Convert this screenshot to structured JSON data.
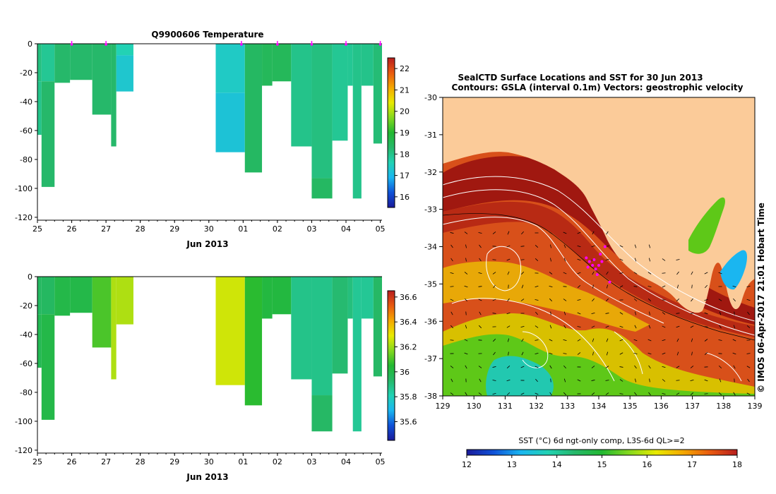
{
  "colors": {
    "land": "#fbcb99",
    "contour": "#ffffff",
    "marker": "#ff00ff",
    "frame": "#000000"
  },
  "chart_data": [
    {
      "id": "temperature-profile",
      "type": "heatmap",
      "title": "Q9900606  Temperature",
      "xlabel": "Jun 2013",
      "x_ticks": [
        "25",
        "26",
        "27",
        "28",
        "29",
        "30",
        "01",
        "02",
        "03",
        "04",
        "05"
      ],
      "x_range": [
        25,
        35.05
      ],
      "y_ticks": [
        "0",
        "-20",
        "-40",
        "-60",
        "-80",
        "-100",
        "-120"
      ],
      "ylim": [
        -122,
        0
      ],
      "colorbar": {
        "ticks": [
          "16",
          "17",
          "18",
          "19",
          "20",
          "21",
          "22"
        ],
        "range": [
          15.5,
          22.5
        ],
        "stops": [
          "#1a1a9a",
          "#0f52d8",
          "#1ab6f0",
          "#22d2b4",
          "#26b86a",
          "#22b832",
          "#84d81e",
          "#e8ea00",
          "#f4a800",
          "#e85a10",
          "#b81e1e"
        ]
      },
      "surface_markers_day": [
        26.0,
        27.0,
        30.95,
        32.0,
        33.0,
        34.0,
        35.0
      ],
      "profiles": [
        {
          "x0": 25.0,
          "x1": 25.12,
          "depth": 63,
          "segments": [
            [
              0,
              26,
              18.1
            ],
            [
              26,
              63,
              18.0
            ]
          ]
        },
        {
          "x0": 25.12,
          "x1": 25.5,
          "depth": 99,
          "segments": [
            [
              0,
              26,
              17.9
            ],
            [
              26,
              99,
              18.3
            ]
          ]
        },
        {
          "x0": 25.5,
          "x1": 25.95,
          "depth": 27,
          "segments": [
            [
              0,
              27,
              18.3
            ]
          ]
        },
        {
          "x0": 25.95,
          "x1": 26.6,
          "depth": 25,
          "segments": [
            [
              0,
              25,
              18.3
            ]
          ]
        },
        {
          "x0": 26.6,
          "x1": 27.15,
          "depth": 49,
          "segments": [
            [
              0,
              49,
              18.3
            ]
          ]
        },
        {
          "x0": 27.15,
          "x1": 27.3,
          "depth": 71,
          "segments": [
            [
              0,
              71,
              18.3
            ]
          ]
        },
        {
          "x0": 27.3,
          "x1": 27.8,
          "depth": 33,
          "segments": [
            [
              0,
              8,
              17.6
            ],
            [
              8,
              33,
              17.3
            ]
          ]
        },
        {
          "x0": 30.2,
          "x1": 31.05,
          "depth": 75,
          "segments": [
            [
              0,
              34,
              17.4
            ],
            [
              34,
              75,
              17.2
            ]
          ]
        },
        {
          "x0": 31.05,
          "x1": 31.55,
          "depth": 89,
          "segments": [
            [
              0,
              89,
              18.4
            ]
          ]
        },
        {
          "x0": 31.55,
          "x1": 31.85,
          "depth": 29,
          "segments": [
            [
              0,
              29,
              18.5
            ]
          ]
        },
        {
          "x0": 31.85,
          "x1": 32.4,
          "depth": 26,
          "segments": [
            [
              0,
              26,
              18.5
            ]
          ]
        },
        {
          "x0": 32.4,
          "x1": 33.0,
          "depth": 71,
          "segments": [
            [
              0,
              71,
              18.0
            ]
          ]
        },
        {
          "x0": 33.0,
          "x1": 33.6,
          "depth": 107,
          "segments": [
            [
              0,
              93,
              18.1
            ],
            [
              93,
              107,
              18.4
            ]
          ]
        },
        {
          "x0": 33.6,
          "x1": 34.05,
          "depth": 67,
          "segments": [
            [
              0,
              67,
              17.9
            ]
          ]
        },
        {
          "x0": 34.05,
          "x1": 34.2,
          "depth": 29,
          "segments": [
            [
              0,
              29,
              17.9
            ]
          ]
        },
        {
          "x0": 34.2,
          "x1": 34.45,
          "depth": 107,
          "segments": [
            [
              0,
              107,
              18.0
            ]
          ]
        },
        {
          "x0": 34.45,
          "x1": 34.8,
          "depth": 29,
          "segments": [
            [
              0,
              29,
              18.0
            ]
          ]
        },
        {
          "x0": 34.8,
          "x1": 35.05,
          "depth": 69,
          "segments": [
            [
              0,
              69,
              18.2
            ]
          ]
        }
      ]
    },
    {
      "id": "salinity-profile",
      "type": "heatmap",
      "title": "",
      "xlabel": "Jun 2013",
      "x_ticks": [
        "25",
        "26",
        "27",
        "28",
        "29",
        "30",
        "01",
        "02",
        "03",
        "04",
        "05"
      ],
      "x_range": [
        25,
        35.05
      ],
      "y_ticks": [
        "0",
        "-20",
        "-40",
        "-60",
        "-80",
        "-100",
        "-120"
      ],
      "ylim": [
        -122,
        0
      ],
      "colorbar": {
        "ticks": [
          "35.6",
          "35.8",
          "36",
          "36.2",
          "36.4",
          "36.6"
        ],
        "range": [
          35.45,
          36.65
        ],
        "stops": [
          "#1a1a9a",
          "#0f52d8",
          "#1ab6f0",
          "#22d2b4",
          "#26b86a",
          "#22b832",
          "#84d81e",
          "#e8ea00",
          "#f4a800",
          "#e85a10",
          "#b81e1e"
        ]
      },
      "profiles": [
        {
          "x0": 25.0,
          "x1": 25.12,
          "depth": 63,
          "segments": [
            [
              0,
              26,
              35.95
            ],
            [
              26,
              63,
              35.98
            ]
          ]
        },
        {
          "x0": 25.12,
          "x1": 25.5,
          "depth": 99,
          "segments": [
            [
              0,
              26,
              35.95
            ],
            [
              26,
              99,
              36.0
            ]
          ]
        },
        {
          "x0": 25.5,
          "x1": 25.95,
          "depth": 27,
          "segments": [
            [
              0,
              27,
              36.0
            ]
          ]
        },
        {
          "x0": 25.95,
          "x1": 26.6,
          "depth": 25,
          "segments": [
            [
              0,
              25,
              36.0
            ]
          ]
        },
        {
          "x0": 26.6,
          "x1": 27.15,
          "depth": 49,
          "segments": [
            [
              0,
              49,
              36.1
            ]
          ]
        },
        {
          "x0": 27.15,
          "x1": 27.3,
          "depth": 71,
          "segments": [
            [
              0,
              71,
              36.22
            ]
          ]
        },
        {
          "x0": 27.3,
          "x1": 27.8,
          "depth": 33,
          "segments": [
            [
              0,
              33,
              36.22
            ]
          ]
        },
        {
          "x0": 30.2,
          "x1": 31.05,
          "depth": 75,
          "segments": [
            [
              0,
              75,
              36.26
            ]
          ]
        },
        {
          "x0": 31.05,
          "x1": 31.55,
          "depth": 89,
          "segments": [
            [
              0,
              89,
              36.06
            ]
          ]
        },
        {
          "x0": 31.55,
          "x1": 31.85,
          "depth": 29,
          "segments": [
            [
              0,
              29,
              36.02
            ]
          ]
        },
        {
          "x0": 31.85,
          "x1": 32.4,
          "depth": 26,
          "segments": [
            [
              0,
              26,
              36.02
            ]
          ]
        },
        {
          "x0": 32.4,
          "x1": 33.0,
          "depth": 71,
          "segments": [
            [
              0,
              71,
              35.88
            ]
          ]
        },
        {
          "x0": 33.0,
          "x1": 33.6,
          "depth": 107,
          "segments": [
            [
              0,
              82,
              35.88
            ],
            [
              82,
              107,
              35.94
            ]
          ]
        },
        {
          "x0": 33.6,
          "x1": 34.05,
          "depth": 67,
          "segments": [
            [
              0,
              67,
              35.92
            ]
          ]
        },
        {
          "x0": 34.05,
          "x1": 34.2,
          "depth": 29,
          "segments": [
            [
              0,
              29,
              35.9
            ]
          ]
        },
        {
          "x0": 34.2,
          "x1": 34.45,
          "depth": 107,
          "segments": [
            [
              0,
              107,
              35.86
            ]
          ]
        },
        {
          "x0": 34.45,
          "x1": 34.8,
          "depth": 29,
          "segments": [
            [
              0,
              29,
              35.86
            ]
          ]
        },
        {
          "x0": 34.8,
          "x1": 35.05,
          "depth": 69,
          "segments": [
            [
              0,
              69,
              35.94
            ]
          ]
        }
      ]
    },
    {
      "id": "sst-map",
      "type": "heatmap",
      "title": "SealCTD Surface Locations and SST for 30 Jun 2013",
      "subtitle": "Contours: GSLA (interval 0.1m) Vectors: geostrophic velocity",
      "xlabel": "",
      "ylabel": "",
      "x_ticks": [
        "129",
        "130",
        "131",
        "132",
        "133",
        "134",
        "135",
        "136",
        "137",
        "138",
        "139"
      ],
      "y_ticks": [
        "-30",
        "-31",
        "-32",
        "-33",
        "-34",
        "-35",
        "-36",
        "-37",
        "-38"
      ],
      "xlim": [
        129,
        139
      ],
      "ylim": [
        -38,
        -30
      ],
      "colorbar": {
        "label": "SST (°C) 6d ngt-only comp, L3S-6d QL>=2",
        "ticks": [
          "12",
          "13",
          "14",
          "15",
          "16",
          "17",
          "18"
        ],
        "range": [
          12,
          18
        ],
        "stops": [
          "#1a1a9a",
          "#0f52d8",
          "#1ab6f0",
          "#22d2b4",
          "#26b86a",
          "#22b832",
          "#84d81e",
          "#e8ea00",
          "#f4a800",
          "#e85a10",
          "#b81e1e"
        ]
      },
      "seal_positions": [
        [
          133.6,
          -34.3
        ],
        [
          133.7,
          -34.4
        ],
        [
          133.8,
          -34.5
        ],
        [
          133.9,
          -34.6
        ],
        [
          134.0,
          -34.5
        ],
        [
          134.1,
          -34.4
        ],
        [
          133.65,
          -34.55
        ],
        [
          133.85,
          -34.35
        ],
        [
          134.05,
          -34.2
        ],
        [
          134.2,
          -34.0
        ],
        [
          133.95,
          -34.75
        ],
        [
          134.35,
          -34.95
        ]
      ],
      "watermark": "© IMOS 06-Apr-2017 21:01 Hobart Time"
    }
  ]
}
